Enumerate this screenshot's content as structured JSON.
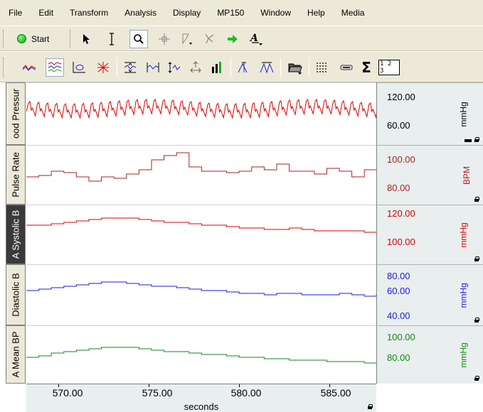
{
  "menu": [
    "File",
    "Edit",
    "Transform",
    "Analysis",
    "Display",
    "MP150",
    "Window",
    "Help",
    "Media"
  ],
  "toolbar1": {
    "start_label": "Start",
    "tools": [
      "arrow-tool-icon",
      "ibeam-tool-icon",
      "zoom-tool-icon",
      "crosshair-tool-icon",
      "pencil-tool-icon",
      "lasso-tool-icon",
      "green-arrow-icon",
      "annotation-tool-icon"
    ]
  },
  "toolbar2": {
    "tools": [
      "overlap-waves-icon",
      "stack-waves-icon",
      "xy-plot-icon",
      "cluster-icon",
      "autoscale-vertical-icon",
      "autoscale-horizontal-icon",
      "adjust-baseline-icon",
      "scroll-icon",
      "histogram-icon",
      "peak-detect-icon",
      "peak-pair-icon",
      "open-journal-icon",
      "grid-icon",
      "measurement-icon",
      "sum-icon",
      "numeric-display-icon"
    ],
    "sum_glyph": "Σ",
    "numeric_glyph": "1 2 3"
  },
  "channels": [
    {
      "name": "Blood Pressure",
      "label_visible": "ood Pressur",
      "color": "#dd0000",
      "scale_top": "120.00",
      "scale_bottom": "60.00",
      "scale_mid": "",
      "unit": "mmHg",
      "selected": false
    },
    {
      "name": "Pulse Rate",
      "label_visible": "Pulse Rate",
      "color": "#aa2222",
      "scale_top": "100.00",
      "scale_bottom": "80.00",
      "scale_mid": "",
      "unit": "BPM",
      "selected": false
    },
    {
      "name": "A Systolic BP",
      "label_visible": "A Systolic B",
      "color": "#dd0000",
      "scale_top": "120.00",
      "scale_bottom": "100.00",
      "scale_mid": "",
      "unit": "mmHg",
      "selected": true
    },
    {
      "name": "Diastolic BP",
      "label_visible": "Diastolic B",
      "color": "#1a1aee",
      "scale_top": "80.00",
      "scale_bottom": "40.00",
      "scale_mid": "60.00",
      "unit": "mmHg",
      "selected": false
    },
    {
      "name": "A Mean BP",
      "label_visible": "A Mean BP",
      "color": "#118811",
      "scale_top": "100.00",
      "scale_bottom": "",
      "scale_mid": "80.00",
      "unit": "mmHg",
      "selected": false
    }
  ],
  "time_axis": {
    "ticks": [
      "570.00",
      "575.00",
      "580.00",
      "585.00"
    ],
    "title": "seconds"
  }
}
